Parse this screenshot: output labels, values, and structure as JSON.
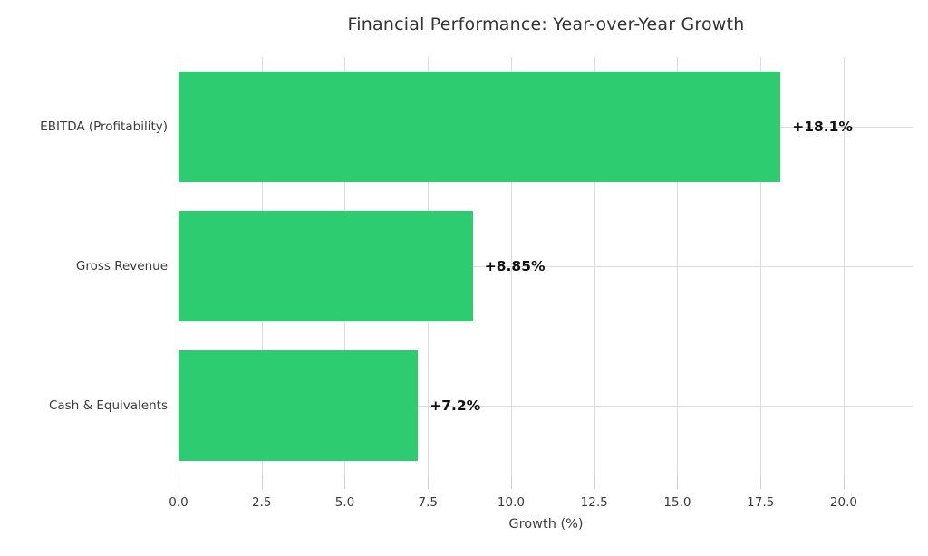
{
  "chart_data": {
    "type": "bar",
    "orientation": "horizontal",
    "title": "Financial Performance: Year-over-Year Growth",
    "categories": [
      "EBITDA (Profitability)",
      "Gross Revenue",
      "Cash & Equivalents"
    ],
    "values": [
      18.1,
      8.85,
      7.2
    ],
    "value_labels": [
      "+18.1%",
      "+8.85%",
      "+7.2%"
    ],
    "xlabel": "Growth (%)",
    "ylabel": "",
    "xlim": [
      0,
      22.1
    ],
    "xticks": [
      0.0,
      2.5,
      5.0,
      7.5,
      10.0,
      12.5,
      15.0,
      17.5,
      20.0
    ],
    "xtick_labels": [
      "0.0",
      "2.5",
      "5.0",
      "7.5",
      "10.0",
      "12.5",
      "15.0",
      "17.5",
      "20.0"
    ],
    "grid": true,
    "grid_axis": "both",
    "legend": false,
    "bar_color": "#2ecc71",
    "grid_color": "#dcdcdc",
    "title_color": "#333333",
    "tick_label_color": "#3b3b3b",
    "value_label_color": "#111111",
    "background_color": "#ffffff"
  }
}
